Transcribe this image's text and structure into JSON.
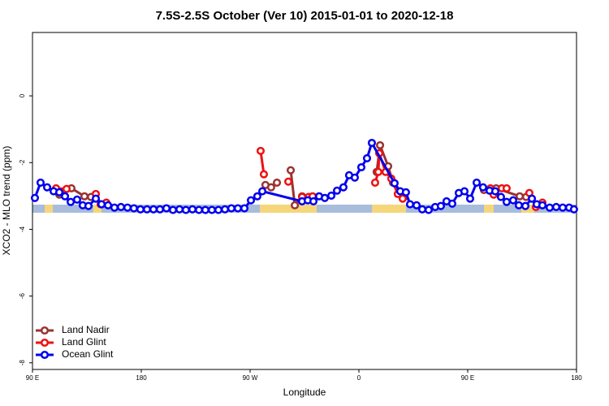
{
  "chart_data": {
    "type": "line",
    "title": "7.5S-2.5S October (Ver 10)   2015-01-01 to 2020-12-18",
    "xlabel": "Longitude",
    "ylabel": "XCO2 - MLO trend (ppm)",
    "xlim": [
      90,
      540
    ],
    "ylim": [
      -8.2,
      1.9
    ],
    "xticks": [
      {
        "value": 90,
        "label": "90 E"
      },
      180,
      {
        "value": 270,
        "label": "90 W"
      },
      {
        "value": 360,
        "label": "0"
      },
      {
        "value": 450,
        "label": "90 E"
      },
      {
        "value": 540,
        "label": "180"
      }
    ],
    "yticks": [
      0,
      -2,
      -4,
      -6,
      -8
    ],
    "legend": "bottom-left",
    "series": [
      {
        "name": "Land Nadir",
        "color": "#993333",
        "x": [
          112.2,
          122.2,
          133.0,
          138.4,
          null,
          282.7,
          287.4,
          292.2,
          null,
          303.6,
          307.0,
          313.0,
          null,
          374.7,
          377.5,
          384.2,
          388.2,
          397.6,
          null,
          463.4,
          473.5,
          493.0,
          498.3
        ],
        "values": [
          -2.96,
          -2.77,
          -3.01,
          -3.03,
          null,
          -2.67,
          -2.74,
          -2.6,
          null,
          -2.23,
          -3.28,
          -3.01,
          null,
          -2.28,
          -1.48,
          -2.11,
          -2.6,
          -3.03,
          null,
          -2.82,
          -2.77,
          -3.01,
          -3.03
        ]
      },
      {
        "name": "Land Glint",
        "color": "#ee1111",
        "x": [
          109.5,
          118.2,
          null,
          142.4,
          146.4,
          151.1,
          null,
          278.7,
          281.4,
          null,
          301.6,
          null,
          313.0,
          318.4,
          321.7,
          null,
          373.4,
          376.1,
          376.8,
          382.1,
          386.8,
          392.2,
          396.2,
          null,
          468.8,
          471.5,
          null,
          478.2,
          482.2,
          null,
          501.0,
          506.4,
          511.8
        ],
        "values": [
          -2.77,
          -2.79,
          null,
          -2.94,
          -3.25,
          -3.2,
          null,
          -1.65,
          -2.35,
          null,
          -2.57,
          null,
          -3.03,
          -3.03,
          -3.01,
          null,
          -2.6,
          -2.28,
          -1.72,
          -2.28,
          -2.48,
          -2.94,
          -3.08,
          null,
          -2.77,
          -2.96,
          null,
          -2.77,
          -2.77,
          null,
          -2.91,
          -3.33,
          -3.2
        ]
      },
      {
        "name": "Ocean Glint",
        "color": "#0000ee",
        "x": [
          92.0,
          96.7,
          102.1,
          107.5,
          112.2,
          116.9,
          121.6,
          126.9,
          131.6,
          136.3,
          142.4,
          147.1,
          152.5,
          157.8,
          163.2,
          168.6,
          173.9,
          179.3,
          184.7,
          190.1,
          195.4,
          200.8,
          206.2,
          211.6,
          216.9,
          222.3,
          227.7,
          233.0,
          238.4,
          243.8,
          249.2,
          254.5,
          259.9,
          265.3,
          270.7,
          276.0,
          280.1,
          313.0,
          317.7,
          322.4,
          327.1,
          331.8,
          337.2,
          341.9,
          347.2,
          351.9,
          356.6,
          362.0,
          366.7,
          370.7,
          389.5,
          394.2,
          398.9,
          402.3,
          407.7,
          412.4,
          417.7,
          423.1,
          427.8,
          432.5,
          437.2,
          442.6,
          447.3,
          452.0,
          457.4,
          462.7,
          468.1,
          472.8,
          477.5,
          482.2,
          487.6,
          492.3,
          497.7,
          503.1,
          507.1,
          511.8,
          517.8,
          523.2,
          528.6,
          533.9,
          537.9
        ],
        "values": [
          -3.06,
          -2.6,
          -2.74,
          -2.86,
          -2.89,
          -3.01,
          -3.18,
          -3.11,
          -3.28,
          -3.3,
          -3.08,
          -3.25,
          -3.28,
          -3.35,
          -3.33,
          -3.35,
          -3.37,
          -3.4,
          -3.4,
          -3.4,
          -3.4,
          -3.37,
          -3.42,
          -3.4,
          -3.42,
          -3.4,
          -3.42,
          -3.42,
          -3.42,
          -3.42,
          -3.4,
          -3.37,
          -3.37,
          -3.37,
          -3.13,
          -3.01,
          -2.86,
          -3.16,
          -3.13,
          -3.16,
          -3.01,
          -3.06,
          -2.99,
          -2.84,
          -2.74,
          -2.38,
          -2.45,
          -2.14,
          -1.87,
          -1.41,
          -2.62,
          -2.86,
          -2.89,
          -3.25,
          -3.28,
          -3.4,
          -3.42,
          -3.33,
          -3.3,
          -3.16,
          -3.23,
          -2.91,
          -2.86,
          -3.08,
          -2.6,
          -2.74,
          -2.84,
          -2.86,
          -3.03,
          -3.18,
          -3.13,
          -3.28,
          -3.3,
          -3.08,
          -3.25,
          -3.28,
          -3.35,
          -3.33,
          -3.35,
          -3.35,
          -3.4
        ]
      }
    ]
  }
}
